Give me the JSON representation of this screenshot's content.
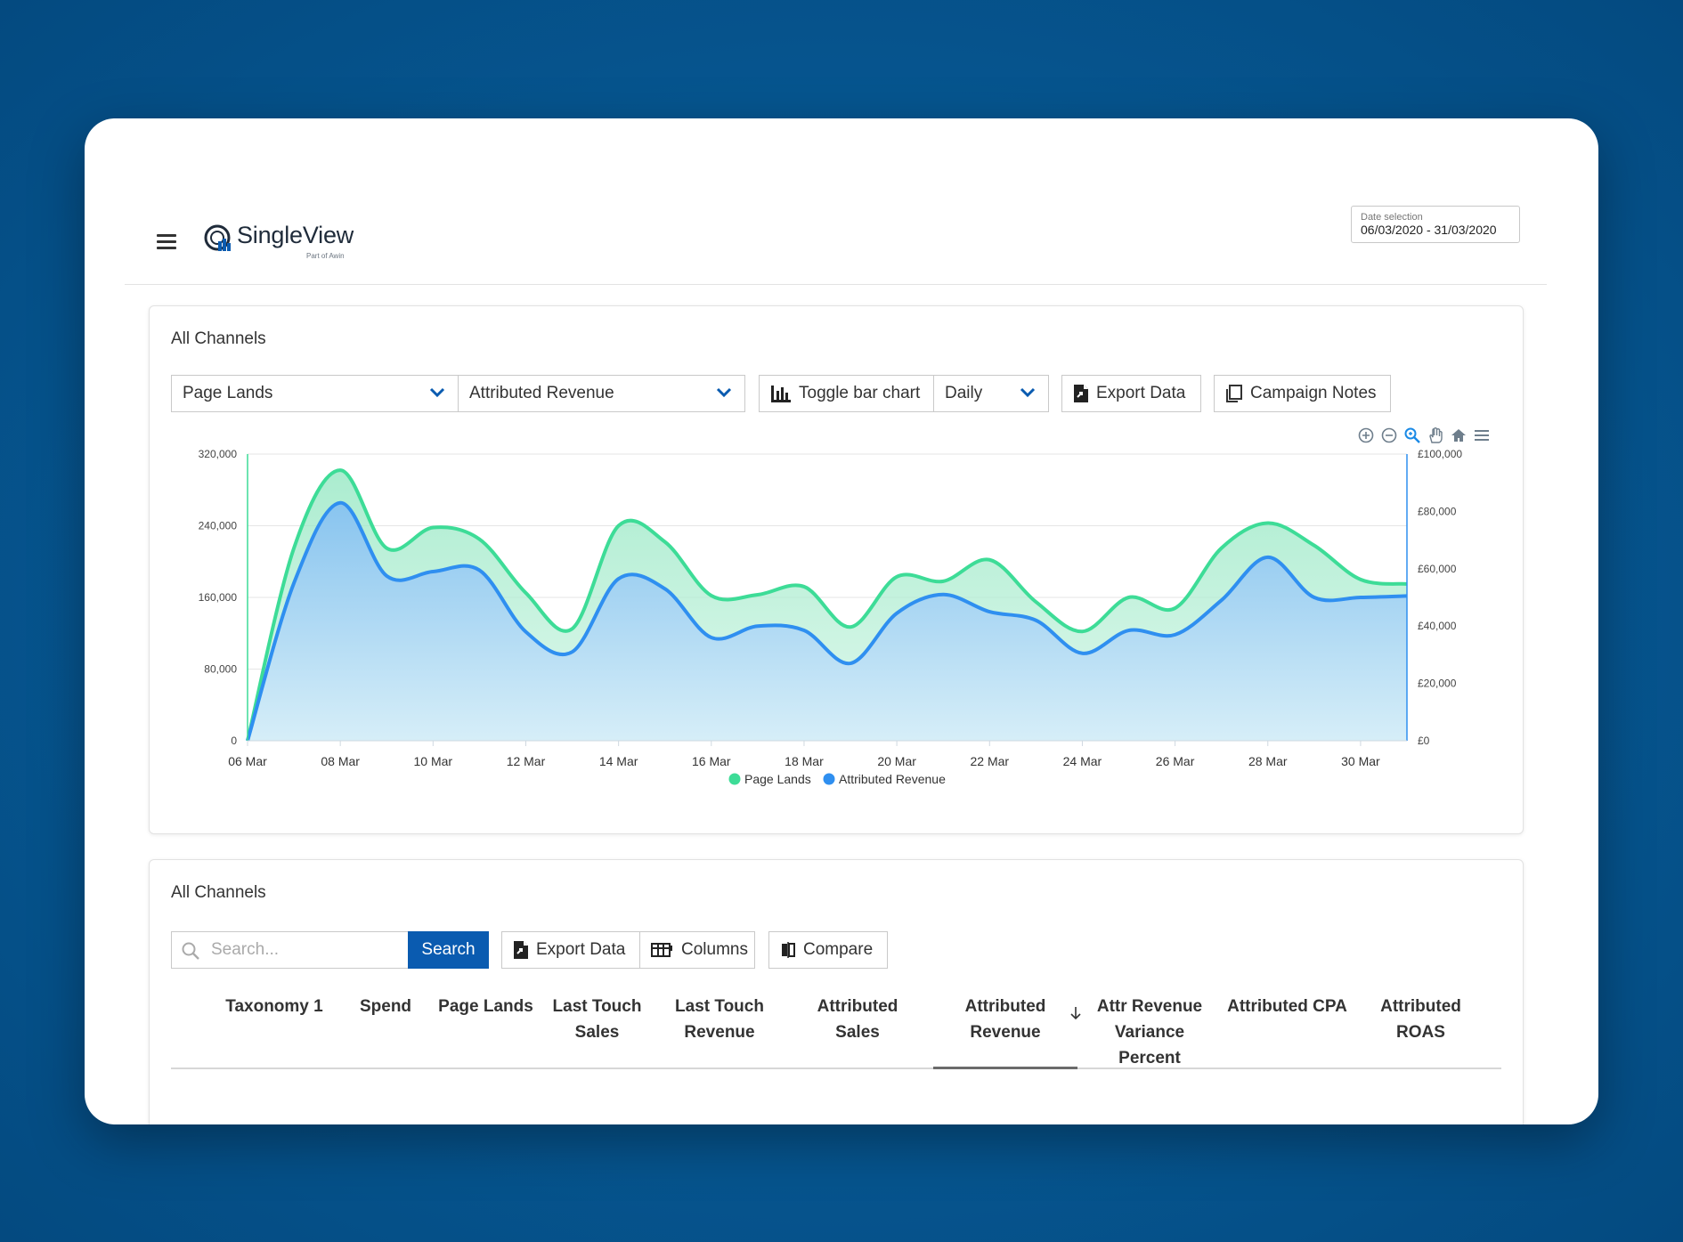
{
  "header": {
    "brand": "SingleView",
    "brand_sub": "Part of Awin",
    "date_label": "Date selection",
    "date_value": "06/03/2020 - 31/03/2020"
  },
  "chart_card": {
    "title": "All Channels",
    "metric1": "Page Lands",
    "metric2": "Attributed Revenue",
    "toggle_bar": "Toggle bar chart",
    "granularity": "Daily",
    "export": "Export Data",
    "campaign_notes": "Campaign Notes",
    "toolbar_icons": [
      "zoom-in-icon",
      "zoom-out-icon",
      "selection-zoom-icon",
      "pan-hand-icon",
      "home-reset-icon",
      "menu-icon"
    ]
  },
  "chart_data": {
    "type": "area",
    "x": [
      "06 Mar",
      "07 Mar",
      "08 Mar",
      "09 Mar",
      "10 Mar",
      "11 Mar",
      "12 Mar",
      "13 Mar",
      "14 Mar",
      "15 Mar",
      "16 Mar",
      "17 Mar",
      "18 Mar",
      "19 Mar",
      "20 Mar",
      "21 Mar",
      "22 Mar",
      "23 Mar",
      "24 Mar",
      "25 Mar",
      "26 Mar",
      "27 Mar",
      "28 Mar",
      "29 Mar",
      "30 Mar",
      "31 Mar"
    ],
    "x_tick_labels": [
      "06 Mar",
      "08 Mar",
      "10 Mar",
      "12 Mar",
      "14 Mar",
      "16 Mar",
      "18 Mar",
      "20 Mar",
      "22 Mar",
      "24 Mar",
      "26 Mar",
      "28 Mar",
      "30 Mar"
    ],
    "series": [
      {
        "name": "Page Lands",
        "axis": "left",
        "color": "#3ddc97",
        "values": [
          0,
          215000,
          302000,
          215000,
          238000,
          225000,
          165000,
          125000,
          240000,
          222000,
          162000,
          163000,
          172000,
          127000,
          183000,
          178000,
          202000,
          155000,
          122000,
          160000,
          148000,
          215000,
          243000,
          218000,
          180000,
          175000
        ]
      },
      {
        "name": "Attributed Revenue",
        "axis": "right",
        "color": "#2f8ff0",
        "values": [
          0,
          55000,
          83000,
          57500,
          59000,
          59500,
          38000,
          31000,
          56500,
          53000,
          36000,
          40000,
          38500,
          27000,
          44500,
          51000,
          45000,
          42000,
          30500,
          38500,
          37000,
          49000,
          64000,
          50000,
          50000,
          50500
        ]
      }
    ],
    "ylim_left": [
      0,
      320000
    ],
    "yticks_left": [
      "0",
      "80,000",
      "160,000",
      "240,000",
      "320,000"
    ],
    "ylim_right": [
      0,
      100000
    ],
    "yticks_right": [
      "£0",
      "£20,000",
      "£40,000",
      "£60,000",
      "£80,000",
      "£100,000"
    ],
    "grid": true,
    "legend": "bottom-center"
  },
  "table_card": {
    "title": "All Channels",
    "search_placeholder": "Search...",
    "search_button": "Search",
    "export": "Export Data",
    "columns_btn": "Columns",
    "compare": "Compare",
    "columns": [
      "Taxonomy 1",
      "Spend",
      "Page Lands",
      "Last Touch Sales",
      "Last Touch Revenue",
      "Attributed Sales",
      "Attributed Revenue",
      "Attr Revenue Variance Percent",
      "Attributed CPA",
      "Attributed ROAS"
    ],
    "sorted_column": "Attributed Revenue"
  }
}
